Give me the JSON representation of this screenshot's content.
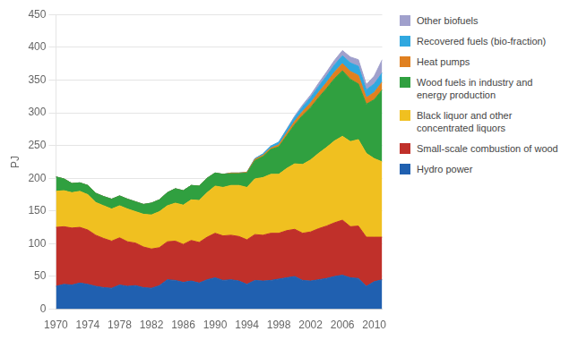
{
  "chart_data": {
    "type": "area",
    "stacked": true,
    "ylabel": "PJ",
    "x": [
      1970,
      1971,
      1972,
      1973,
      1974,
      1975,
      1976,
      1977,
      1978,
      1979,
      1980,
      1981,
      1982,
      1983,
      1984,
      1985,
      1986,
      1987,
      1988,
      1989,
      1990,
      1991,
      1992,
      1993,
      1994,
      1995,
      1996,
      1997,
      1998,
      1999,
      2000,
      2001,
      2002,
      2003,
      2004,
      2005,
      2006,
      2007,
      2008,
      2009,
      2010,
      2011
    ],
    "series": [
      {
        "name": "Hydro power",
        "color": "#2060b0",
        "values": [
          35,
          38,
          37,
          40,
          38,
          35,
          33,
          32,
          37,
          35,
          36,
          33,
          32,
          36,
          45,
          44,
          41,
          43,
          40,
          45,
          48,
          44,
          45,
          43,
          38,
          44,
          43,
          44,
          46,
          48,
          50,
          44,
          43,
          45,
          47,
          50,
          52,
          48,
          47,
          35,
          42,
          45
        ]
      },
      {
        "name": "Small-scale combustion of wood",
        "color": "#c0302a",
        "values": [
          90,
          88,
          87,
          85,
          83,
          78,
          75,
          72,
          72,
          68,
          65,
          62,
          60,
          58,
          58,
          60,
          58,
          62,
          62,
          65,
          68,
          68,
          68,
          68,
          68,
          70,
          70,
          72,
          70,
          72,
          72,
          72,
          75,
          78,
          80,
          82,
          84,
          78,
          80,
          75,
          68,
          65
        ]
      },
      {
        "name": "Black liquor and other\nconcentrated liquors",
        "color": "#f0c020",
        "values": [
          55,
          55,
          54,
          55,
          54,
          50,
          50,
          49,
          49,
          50,
          48,
          50,
          52,
          55,
          55,
          58,
          60,
          62,
          64,
          68,
          72,
          74,
          76,
          78,
          80,
          85,
          88,
          90,
          90,
          95,
          100,
          105,
          110,
          115,
          120,
          125,
          128,
          130,
          132,
          128,
          120,
          115
        ]
      },
      {
        "name": "Wood fuels in industry and\nenergy production",
        "color": "#30a040",
        "values": [
          22,
          18,
          14,
          13,
          14,
          14,
          14,
          15,
          15,
          15,
          15,
          15,
          18,
          18,
          20,
          22,
          22,
          22,
          22,
          22,
          20,
          20,
          18,
          18,
          22,
          28,
          32,
          38,
          42,
          50,
          60,
          75,
          80,
          85,
          90,
          95,
          100,
          95,
          85,
          75,
          90,
          110
        ]
      },
      {
        "name": "Heat pumps",
        "color": "#e08020",
        "values": [
          0,
          0,
          0,
          0,
          0,
          0,
          0,
          0,
          0,
          0,
          0,
          0,
          0,
          0,
          0,
          0,
          0,
          0,
          0,
          0,
          0,
          0,
          1,
          1,
          1,
          2,
          2,
          2,
          3,
          4,
          5,
          6,
          7,
          8,
          9,
          10,
          11,
          12,
          13,
          10,
          11,
          12
        ]
      },
      {
        "name": "Recovered fuels (bio-fraction)",
        "color": "#30a8e0",
        "values": [
          0,
          0,
          0,
          0,
          0,
          0,
          0,
          0,
          0,
          0,
          0,
          0,
          0,
          0,
          0,
          0,
          0,
          0,
          0,
          0,
          0,
          0,
          0,
          0,
          0,
          1,
          2,
          3,
          4,
          5,
          6,
          7,
          8,
          9,
          10,
          11,
          12,
          13,
          14,
          12,
          13,
          14
        ]
      },
      {
        "name": "Other biofuels",
        "color": "#a0a0cc",
        "values": [
          0,
          0,
          0,
          0,
          0,
          0,
          0,
          0,
          0,
          0,
          0,
          0,
          0,
          0,
          0,
          0,
          0,
          0,
          0,
          0,
          0,
          0,
          0,
          0,
          0,
          0,
          0,
          0,
          0,
          1,
          2,
          3,
          4,
          5,
          6,
          7,
          8,
          9,
          10,
          8,
          12,
          20
        ]
      }
    ],
    "xlim": [
      1970,
      2011
    ],
    "xticks": [
      1970,
      1974,
      1978,
      1982,
      1986,
      1990,
      1994,
      1998,
      2002,
      2006,
      2010
    ],
    "ylim": [
      0,
      450
    ],
    "yticks": [
      0,
      50,
      100,
      150,
      200,
      250,
      300,
      350,
      400,
      450
    ],
    "grid": "y",
    "legend": "right"
  }
}
